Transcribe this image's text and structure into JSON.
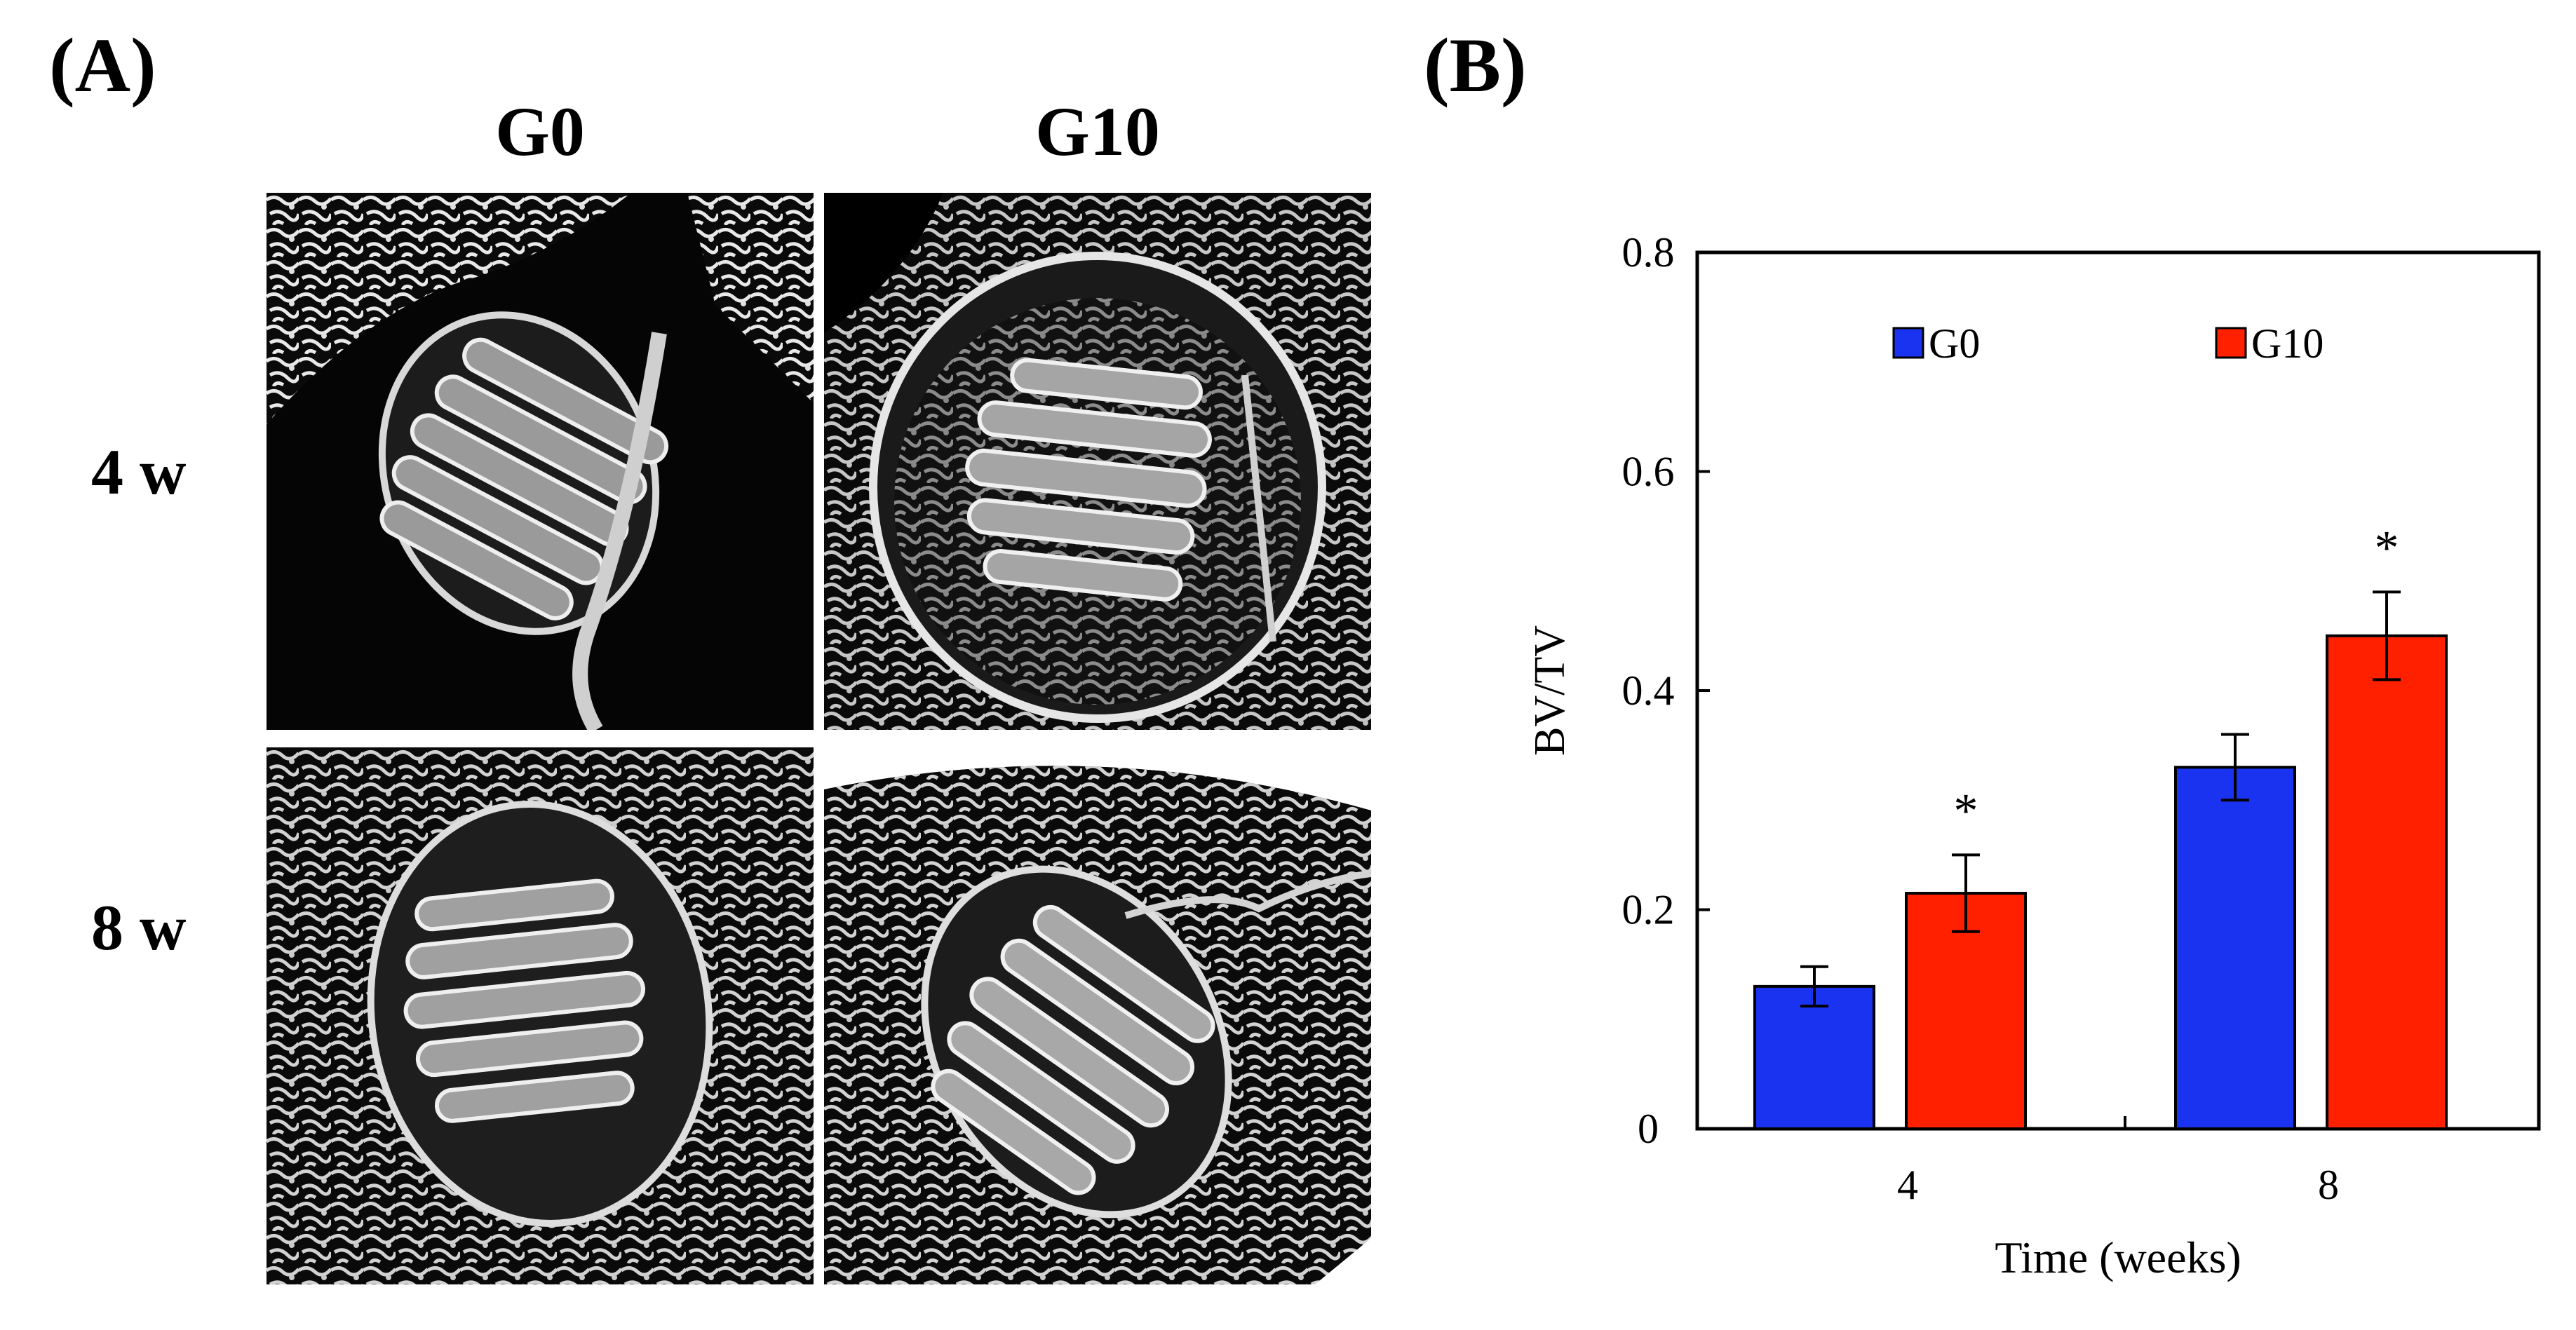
{
  "panels": {
    "a_label": "(A)",
    "b_label": "(B)"
  },
  "images": {
    "columns": [
      "G0",
      "G10"
    ],
    "rows": [
      "4 w",
      "8 w"
    ]
  },
  "chart_data": {
    "type": "bar",
    "title": "",
    "xlabel": "Time (weeks)",
    "ylabel": "BV/TV",
    "categories": [
      "4",
      "8"
    ],
    "ylim": [
      0,
      0.8
    ],
    "yticks": [
      0,
      0.2,
      0.4,
      0.6,
      0.8
    ],
    "ytick_labels": [
      "0",
      "0.2",
      "0.4",
      "0.6",
      "0.8"
    ],
    "series": [
      {
        "name": "G0",
        "color": "#1a33f0",
        "values": [
          0.13,
          0.33
        ],
        "errors": [
          0.018,
          0.03
        ],
        "significance": [
          "",
          ""
        ]
      },
      {
        "name": "G10",
        "color": "#ff2000",
        "values": [
          0.215,
          0.45
        ],
        "errors": [
          0.035,
          0.04
        ],
        "significance": [
          "*",
          "*"
        ]
      }
    ],
    "legend_position": "top"
  }
}
